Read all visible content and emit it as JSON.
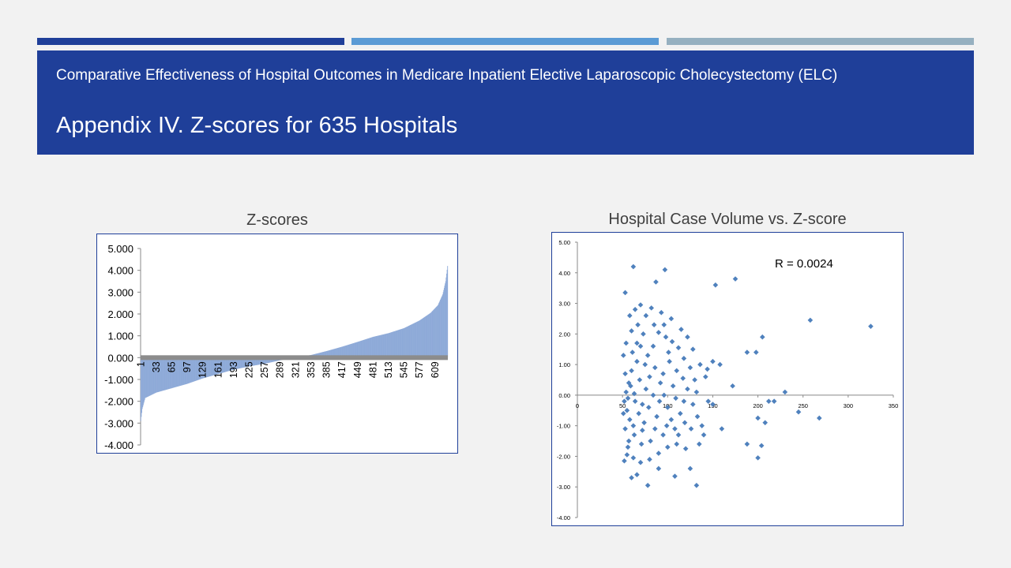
{
  "slide": {
    "subtitle": "Comparative Effectiveness of Hospital Outcomes in Medicare Inpatient Elective Laparoscopic Cholecystectomy (ELC)",
    "title": "Appendix IV. Z-scores for 635 Hospitals",
    "accent_colors": [
      "#1f3f99",
      "#5b9bd5",
      "#96b0c0"
    ]
  },
  "chart_data": [
    {
      "type": "bar",
      "title": "Z-scores",
      "xlabel": "",
      "ylabel": "",
      "hospital_count": 635,
      "ylim": [
        -4.0,
        5.0
      ],
      "yticks": [
        "5.000",
        "4.000",
        "3.000",
        "2.000",
        "1.000",
        "0.000",
        "-1.000",
        "-2.000",
        "-3.000",
        "-4.000"
      ],
      "xticks": [
        "1",
        "33",
        "65",
        "97",
        "129",
        "161",
        "193",
        "225",
        "257",
        "289",
        "321",
        "353",
        "385",
        "417",
        "449",
        "481",
        "513",
        "545",
        "577",
        "609"
      ],
      "sorted_value_profile": [
        [
          1,
          -2.9
        ],
        [
          4,
          -2.35
        ],
        [
          10,
          -1.85
        ],
        [
          33,
          -1.6
        ],
        [
          65,
          -1.4
        ],
        [
          97,
          -1.2
        ],
        [
          129,
          -0.95
        ],
        [
          161,
          -0.75
        ],
        [
          193,
          -0.55
        ],
        [
          225,
          -0.4
        ],
        [
          257,
          -0.28
        ],
        [
          289,
          -0.12
        ],
        [
          321,
          0.0
        ],
        [
          353,
          0.12
        ],
        [
          385,
          0.3
        ],
        [
          417,
          0.5
        ],
        [
          449,
          0.72
        ],
        [
          481,
          0.95
        ],
        [
          513,
          1.12
        ],
        [
          545,
          1.35
        ],
        [
          577,
          1.7
        ],
        [
          600,
          2.05
        ],
        [
          615,
          2.4
        ],
        [
          625,
          2.9
        ],
        [
          631,
          3.5
        ],
        [
          635,
          4.2
        ]
      ],
      "bar_color": "#8eaad8"
    },
    {
      "type": "scatter",
      "title": "Hospital Case Volume vs. Z-score",
      "annotation": "R = 0.0024",
      "xlim": [
        0,
        350
      ],
      "ylim": [
        -4.0,
        5.0
      ],
      "xticks": [
        "0",
        "50",
        "100",
        "150",
        "200",
        "250",
        "300",
        "350"
      ],
      "yticks": [
        "5.00",
        "4.00",
        "3.00",
        "2.00",
        "1.00",
        "0.00",
        "-1.00",
        "-2.00",
        "-3.00",
        "-4.00"
      ],
      "marker_color": "#4f81bd",
      "points": [
        [
          62,
          4.2
        ],
        [
          97,
          4.1
        ],
        [
          87,
          3.7
        ],
        [
          153,
          3.6
        ],
        [
          175,
          3.8
        ],
        [
          53,
          3.35
        ],
        [
          258,
          2.45
        ],
        [
          325,
          2.25
        ],
        [
          70,
          2.95
        ],
        [
          64,
          2.8
        ],
        [
          58,
          2.6
        ],
        [
          82,
          2.85
        ],
        [
          76,
          2.6
        ],
        [
          93,
          2.7
        ],
        [
          104,
          2.5
        ],
        [
          205,
          1.9
        ],
        [
          188,
          1.4
        ],
        [
          198,
          1.4
        ],
        [
          150,
          1.1
        ],
        [
          158,
          1.0
        ],
        [
          172,
          0.3
        ],
        [
          230,
          0.1
        ],
        [
          212,
          -0.2
        ],
        [
          218,
          -0.2
        ],
        [
          245,
          -0.55
        ],
        [
          268,
          -0.75
        ],
        [
          208,
          -0.9
        ],
        [
          200,
          -0.75
        ],
        [
          188,
          -1.6
        ],
        [
          204,
          -1.65
        ],
        [
          200,
          -2.05
        ],
        [
          160,
          -1.1
        ],
        [
          132,
          -2.95
        ],
        [
          78,
          -2.95
        ],
        [
          60,
          -2.7
        ],
        [
          66,
          -2.6
        ],
        [
          108,
          -2.65
        ],
        [
          125,
          -2.4
        ],
        [
          90,
          -2.4
        ],
        [
          55,
          -1.95
        ],
        [
          52,
          -2.15
        ],
        [
          56,
          -1.7
        ],
        [
          63,
          -1.3
        ],
        [
          72,
          -1.15
        ],
        [
          81,
          -1.5
        ],
        [
          95,
          -1.3
        ],
        [
          110,
          -1.6
        ],
        [
          120,
          -1.75
        ],
        [
          135,
          -1.6
        ],
        [
          140,
          -1.3
        ],
        [
          150,
          -0.3
        ],
        [
          145,
          -0.2
        ],
        [
          130,
          0.5
        ],
        [
          125,
          0.9
        ],
        [
          118,
          1.2
        ],
        [
          112,
          1.55
        ],
        [
          105,
          1.75
        ],
        [
          98,
          1.9
        ],
        [
          90,
          2.05
        ],
        [
          84,
          1.6
        ],
        [
          78,
          1.3
        ],
        [
          70,
          1.6
        ],
        [
          66,
          1.1
        ],
        [
          60,
          0.8
        ],
        [
          57,
          0.4
        ],
        [
          54,
          0.1
        ],
        [
          52,
          -0.2
        ],
        [
          55,
          -0.5
        ],
        [
          58,
          -0.8
        ],
        [
          62,
          -1.0
        ],
        [
          68,
          -0.6
        ],
        [
          72,
          -0.3
        ],
        [
          76,
          0.2
        ],
        [
          80,
          0.6
        ],
        [
          86,
          0.9
        ],
        [
          92,
          0.4
        ],
        [
          96,
          0.0
        ],
        [
          100,
          -0.4
        ],
        [
          104,
          -0.8
        ],
        [
          108,
          -1.1
        ],
        [
          114,
          -0.6
        ],
        [
          118,
          -0.2
        ],
        [
          122,
          0.2
        ],
        [
          128,
          -0.3
        ],
        [
          133,
          -0.7
        ],
        [
          138,
          -1.0
        ],
        [
          142,
          0.6
        ],
        [
          110,
          0.8
        ],
        [
          102,
          1.1
        ],
        [
          88,
          -0.7
        ],
        [
          74,
          -0.9
        ],
        [
          64,
          -0.2
        ],
        [
          59,
          0.3
        ],
        [
          53,
          0.7
        ],
        [
          51,
          1.3
        ],
        [
          54,
          1.7
        ],
        [
          60,
          2.1
        ],
        [
          67,
          2.3
        ],
        [
          73,
          2.0
        ],
        [
          85,
          2.3
        ],
        [
          96,
          2.3
        ],
        [
          115,
          2.15
        ],
        [
          122,
          1.9
        ],
        [
          128,
          1.5
        ],
        [
          136,
          1.0
        ],
        [
          144,
          0.85
        ],
        [
          112,
          -1.3
        ],
        [
          100,
          -1.7
        ],
        [
          90,
          -1.9
        ],
        [
          80,
          -2.1
        ],
        [
          70,
          -2.2
        ],
        [
          62,
          -2.05
        ],
        [
          57,
          -1.5
        ],
        [
          53,
          -1.1
        ],
        [
          51,
          -0.6
        ],
        [
          84,
          0.0
        ],
        [
          79,
          -0.4
        ],
        [
          91,
          -0.2
        ],
        [
          106,
          0.3
        ],
        [
          117,
          0.55
        ],
        [
          126,
          -1.1
        ],
        [
          95,
          0.7
        ],
        [
          69,
          0.5
        ],
        [
          61,
          1.4
        ],
        [
          56,
          -0.1
        ],
        [
          63,
          0.05
        ],
        [
          71,
          -1.6
        ],
        [
          86,
          -1.1
        ],
        [
          99,
          -1.0
        ],
        [
          109,
          -0.1
        ],
        [
          66,
          1.7
        ],
        [
          75,
          1.0
        ],
        [
          101,
          1.4
        ],
        [
          119,
          -0.9
        ],
        [
          132,
          0.1
        ]
      ]
    }
  ]
}
